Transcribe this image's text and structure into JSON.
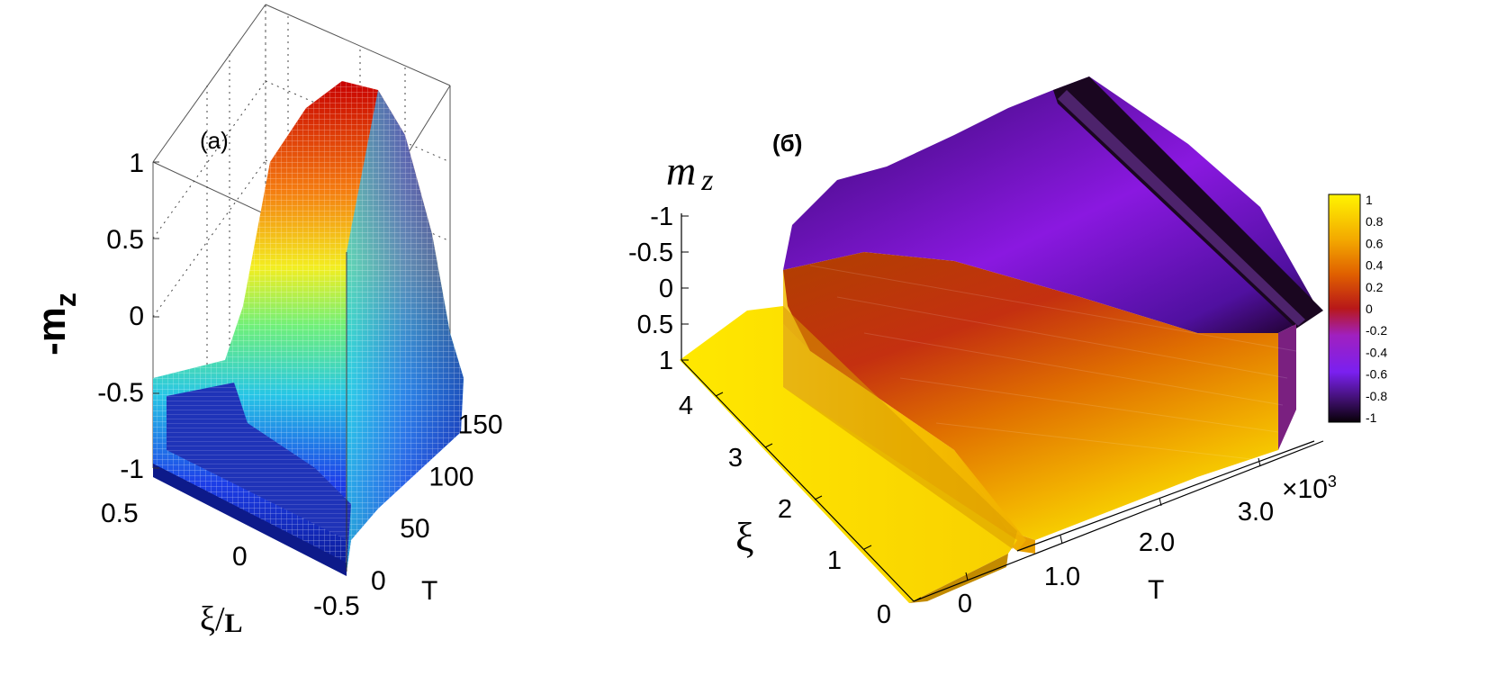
{
  "chart_data": [
    {
      "type": "surface3d",
      "panel_label": "(a)",
      "zlabel": "-m",
      "zlabel_sub": "z",
      "xlabel": "ξ/",
      "xlabel_sub": "L",
      "ylabel": "T",
      "z_ticks": [
        "1",
        "0.5",
        "0",
        "-0.5",
        "-1"
      ],
      "x_ticks": [
        "0.5",
        "0",
        "-0.5"
      ],
      "y_ticks": [
        "0",
        "50",
        "100",
        "150"
      ],
      "zlim": [
        -1,
        1
      ],
      "xlim": [
        -0.5,
        0.5
      ],
      "ylim": [
        0,
        160
      ],
      "colormap": "jet",
      "colors": {
        "high": "#cc0000",
        "low": "#1a2aa0"
      },
      "grid": true
    },
    {
      "type": "surface3d",
      "panel_label": "(б)",
      "zlabel": "m",
      "zlabel_sub": "z",
      "xlabel": "T",
      "ylabel": "ξ",
      "z_ticks": [
        "-1",
        "-0.5",
        "0",
        "0.5",
        "1"
      ],
      "y_ticks": [
        "0",
        "1",
        "2",
        "3",
        "4"
      ],
      "x_ticks": [
        "0",
        "1.0",
        "2.0",
        "3.0"
      ],
      "x_multiplier": "×10",
      "x_multiplier_exp": "3",
      "colormap": "gnuplot",
      "colorbar": {
        "ticks": [
          "1",
          "0.8",
          "0.6",
          "0.4",
          "0.2",
          "0",
          "-0.2",
          "-0.4",
          "-0.6",
          "-0.8",
          "-1"
        ],
        "range": [
          -1,
          1
        ],
        "colors": {
          "top": "#fff200",
          "mid": "#c03010",
          "bottom": "#100010"
        }
      },
      "grid": false
    }
  ]
}
